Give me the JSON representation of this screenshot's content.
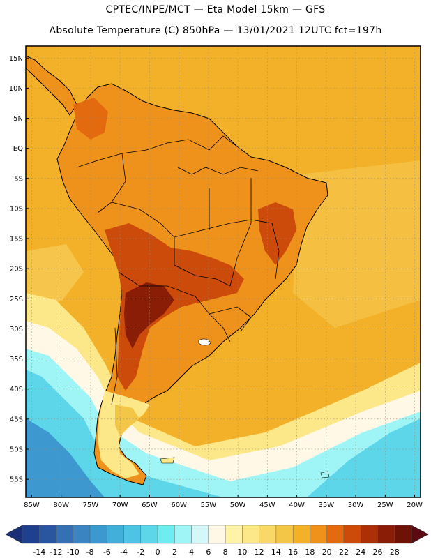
{
  "header": {
    "line1": "CPTEC/INPE/MCT —  Eta Model 15km — GFS",
    "line2": "Absolute Temperature (C) 850hPa — 13/01/2021 12UTC fct=197h"
  },
  "map": {
    "lon_range": [
      -86,
      -19
    ],
    "lat_range": [
      -58,
      17
    ],
    "lat_ticks": [
      "15N",
      "10N",
      "5N",
      "EQ",
      "5S",
      "10S",
      "15S",
      "20S",
      "25S",
      "30S",
      "35S",
      "40S",
      "45S",
      "50S",
      "55S"
    ],
    "lat_values": [
      15,
      10,
      5,
      0,
      -5,
      -10,
      -15,
      -20,
      -25,
      -30,
      -35,
      -40,
      -45,
      -50,
      -55
    ],
    "lon_ticks": [
      "85W",
      "80W",
      "75W",
      "70W",
      "65W",
      "60W",
      "55W",
      "50W",
      "45W",
      "40W",
      "35W",
      "30W",
      "25W",
      "20W"
    ],
    "lon_values": [
      -85,
      -80,
      -75,
      -70,
      -65,
      -60,
      -55,
      -50,
      -45,
      -40,
      -35,
      -30,
      -25,
      -20
    ],
    "ocean_color": "#f2b128",
    "frame_color": "#000000"
  },
  "colorbar": {
    "labels": [
      "-14",
      "-12",
      "-10",
      "-8",
      "-6",
      "-4",
      "-2",
      "0",
      "2",
      "4",
      "6",
      "8",
      "10",
      "12",
      "14",
      "16",
      "18",
      "20",
      "22",
      "24",
      "26",
      "28"
    ],
    "colors": [
      "#1f3f8f",
      "#2a56a0",
      "#3470b3",
      "#3b84c2",
      "#3d98cf",
      "#42aeda",
      "#4fc3e3",
      "#5dd6ea",
      "#6eecef",
      "#9ff5f5",
      "#d4f7f7",
      "#fff8e6",
      "#fff3a8",
      "#fce888",
      "#f9d869",
      "#f4c648",
      "#f2b128",
      "#ee921b",
      "#e36a0e",
      "#cc4a0a",
      "#ab3008",
      "#8a1d06",
      "#6d1205"
    ],
    "left_arrow_color": "#1a2f75",
    "right_arrow_color": "#5a0a10"
  }
}
